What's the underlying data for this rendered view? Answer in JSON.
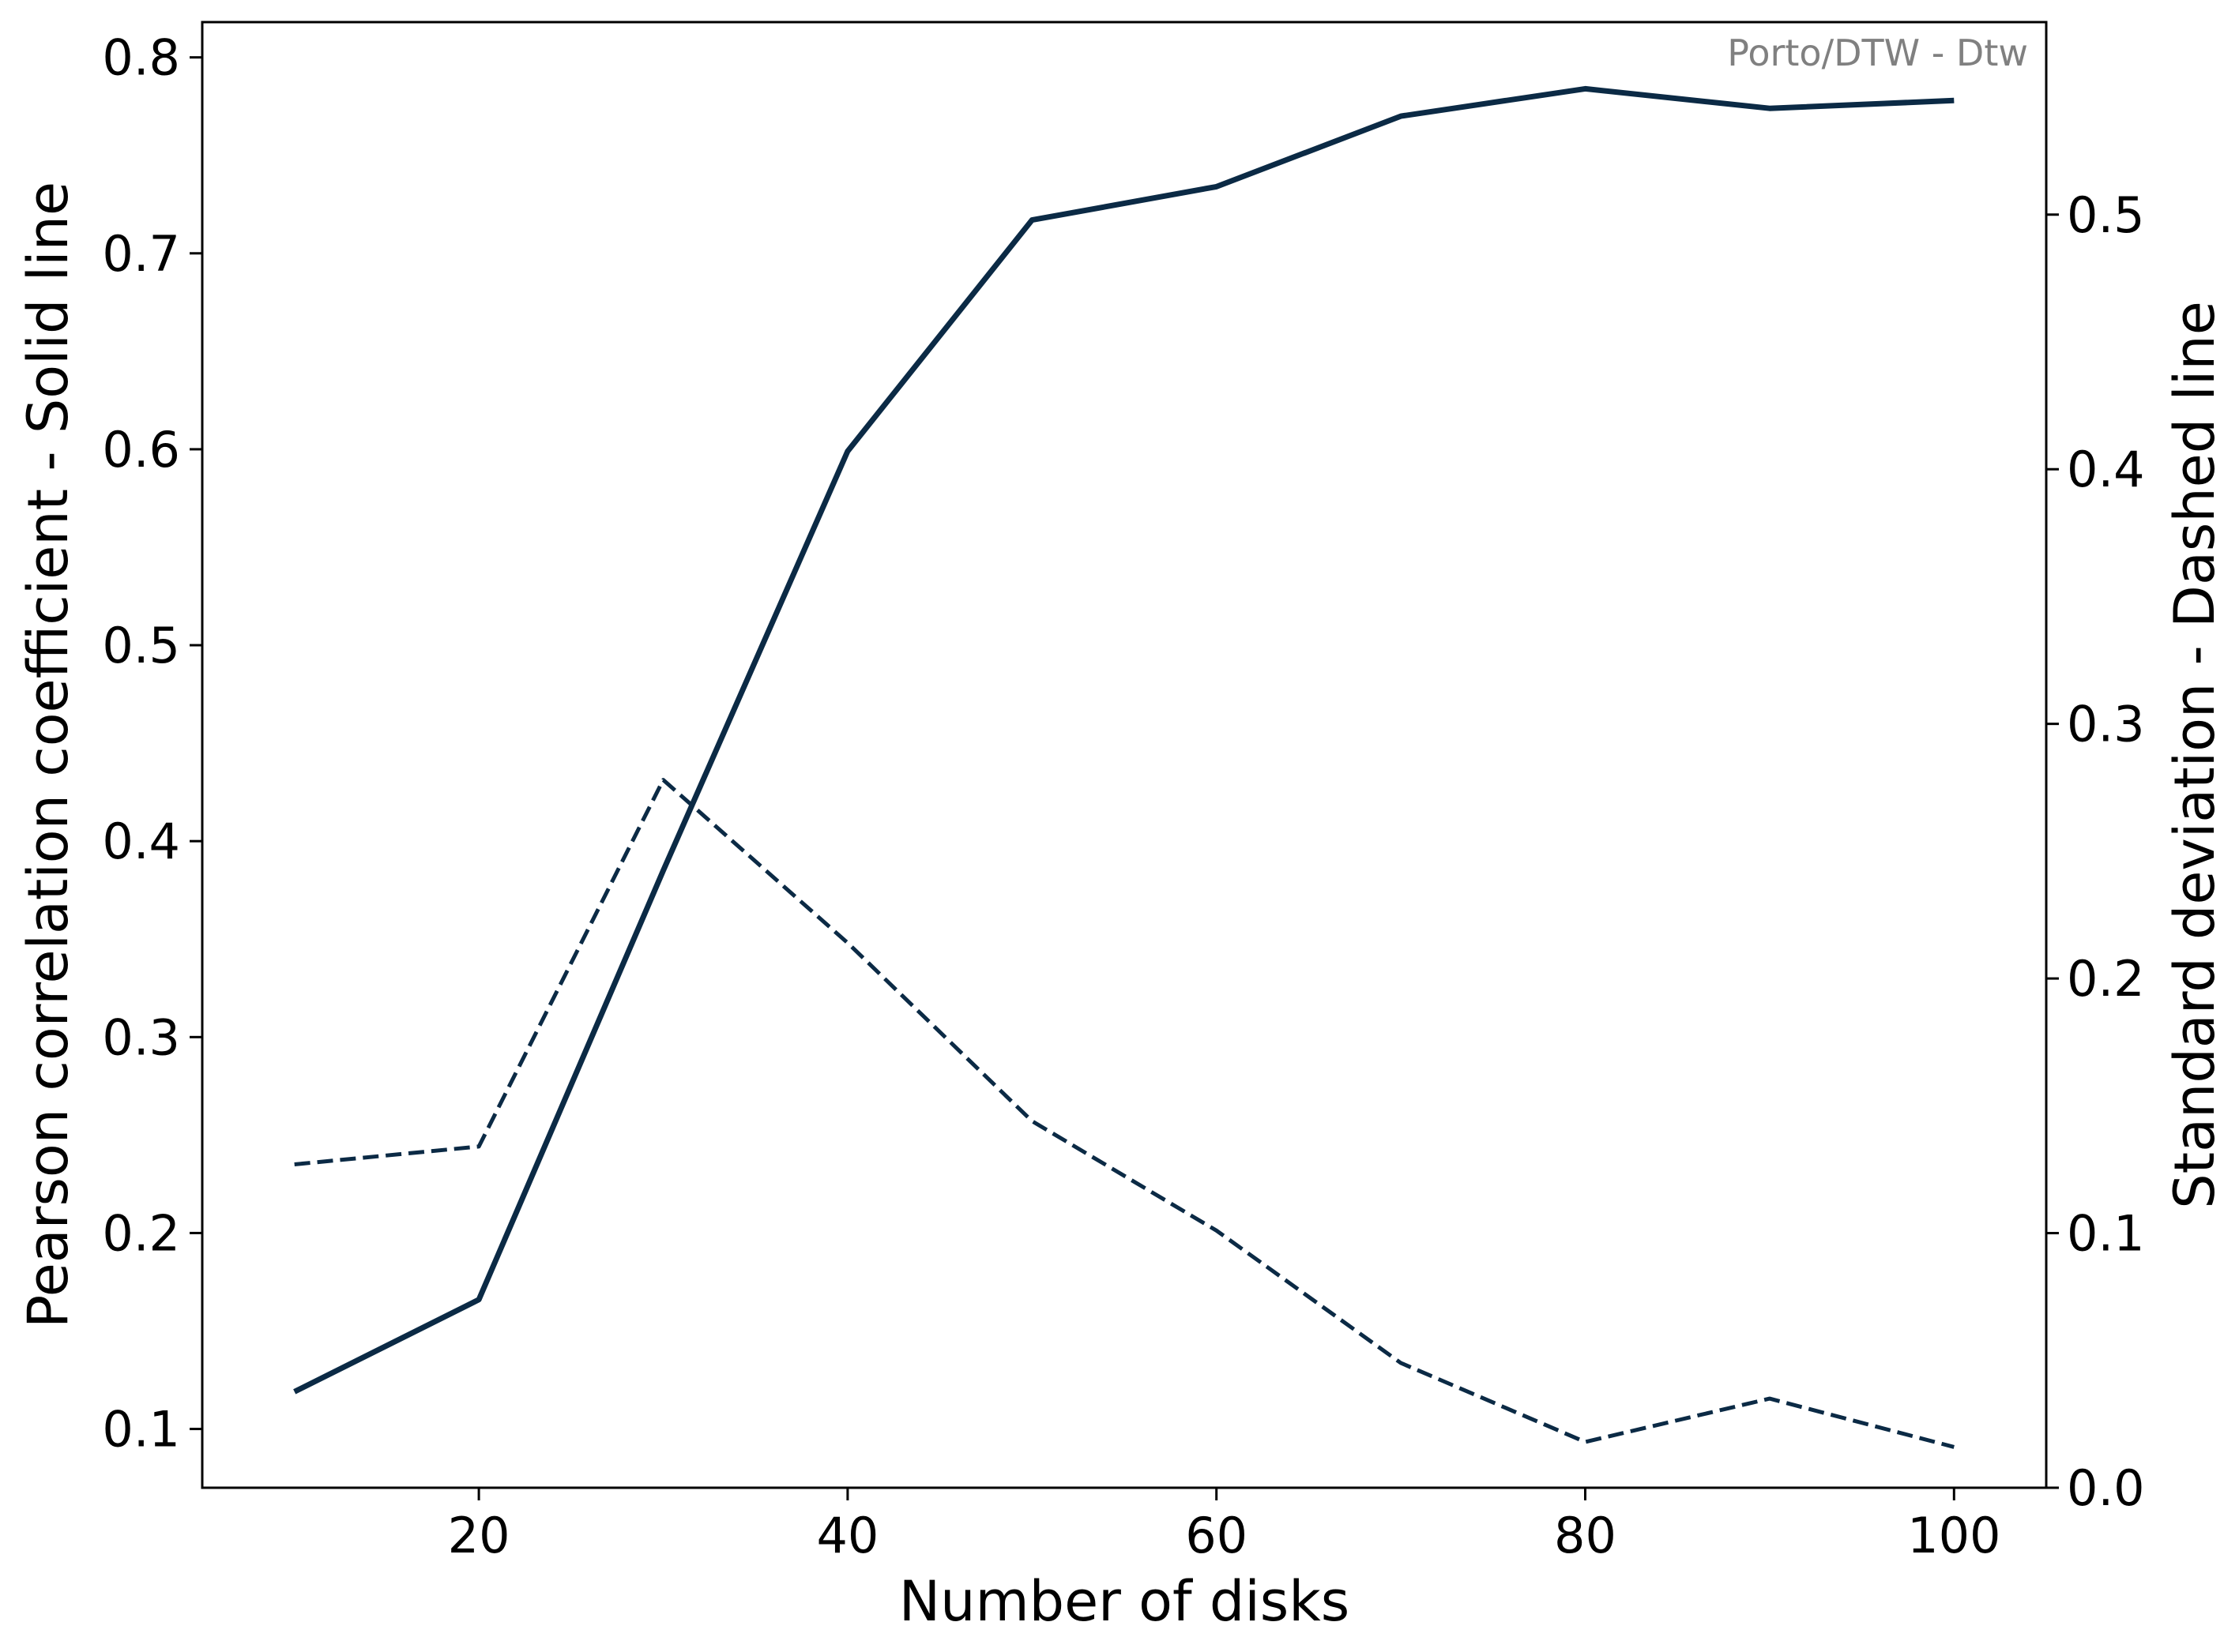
{
  "chart_data": {
    "type": "line",
    "annotation": "Porto/DTW - Dtw",
    "xlabel": "Number of disks",
    "ylabel_left": "Pearson correlation coefficient - Solid line",
    "ylabel_right": "Standard deviation - Dashed line",
    "xlim": [
      5,
      105
    ],
    "ylim_left": [
      0.07,
      0.818
    ],
    "ylim_right": [
      0.0,
      0.5756
    ],
    "x_ticks": [
      20,
      40,
      60,
      80,
      100
    ],
    "y_left_ticks": [
      0.1,
      0.2,
      0.3,
      0.4,
      0.5,
      0.6,
      0.7,
      0.8
    ],
    "y_right_ticks": [
      0.0,
      0.1,
      0.2,
      0.3,
      0.4,
      0.5
    ],
    "x": [
      10,
      20,
      30,
      40,
      50,
      60,
      70,
      80,
      90,
      100
    ],
    "series": [
      {
        "axis": "left",
        "line_style": "solid",
        "values": [
          0.119,
          0.166,
          0.385,
          0.599,
          0.717,
          0.734,
          0.77,
          0.784,
          0.774,
          0.778
        ]
      },
      {
        "axis": "right",
        "line_style": "dashed",
        "values": [
          0.127,
          0.134,
          0.278,
          0.214,
          0.144,
          0.101,
          0.049,
          0.018,
          0.035,
          0.016
        ]
      }
    ],
    "grid": false,
    "legend": "none",
    "colors": {
      "line": "#0b2a45"
    }
  }
}
